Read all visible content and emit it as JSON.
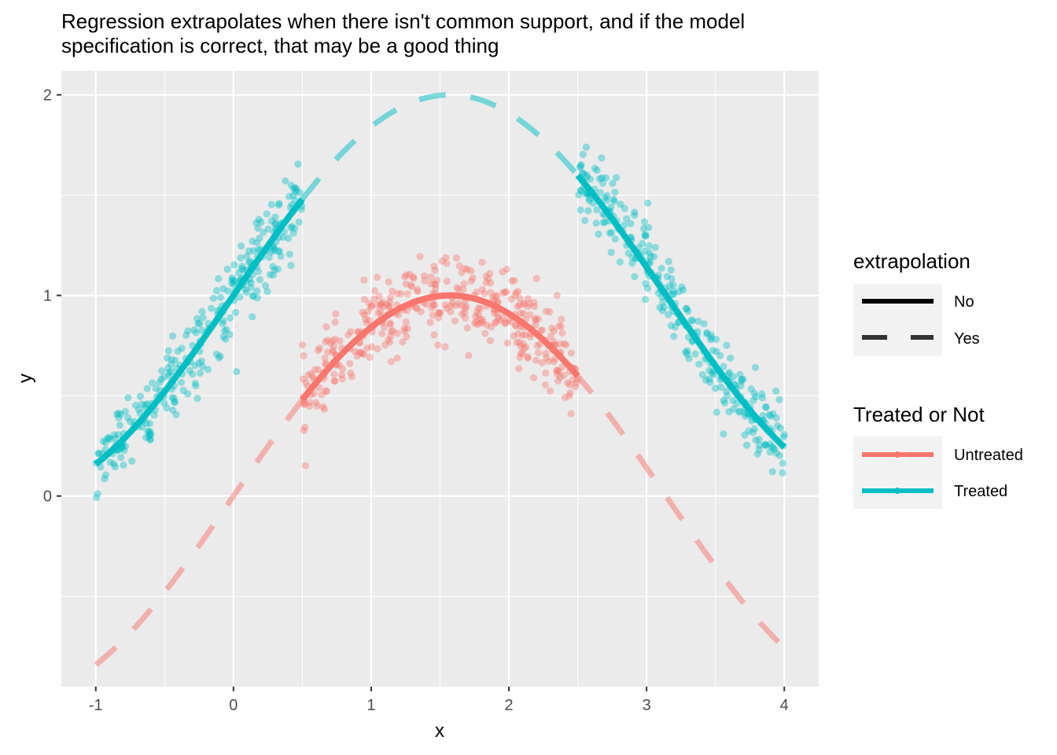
{
  "chart_data": {
    "type": "scatter",
    "title": "Regression extrapolates when there isn't common support, and if the model",
    "subtitle": "specification is correct, that may be a good thing",
    "xlabel": "x",
    "ylabel": "y",
    "xlim": [
      -1.25,
      4.25
    ],
    "ylim": [
      -0.95,
      2.12
    ],
    "xticks": [
      -1,
      0,
      1,
      2,
      3,
      4
    ],
    "yticks": [
      0,
      1,
      2
    ],
    "grid": true,
    "legend_position": "right",
    "legends": [
      {
        "title": "extrapolation",
        "entries": [
          {
            "label": "No",
            "linetype": "solid"
          },
          {
            "label": "Yes",
            "linetype": "dashed"
          }
        ]
      },
      {
        "title": "Treated or Not",
        "entries": [
          {
            "label": "Untreated",
            "color": "#F8766D"
          },
          {
            "label": "Treated",
            "color": "#00BFC4"
          }
        ]
      }
    ],
    "function": "y = sin(x) + 1 * (treated) ; untreated curve y = sin(x)",
    "series": [
      {
        "name": "Untreated",
        "color": "#F8766D",
        "x_range": [
          0.5,
          2.5
        ],
        "points": 400,
        "fit_solid_range": [
          0.5,
          2.5
        ],
        "fit_dashed_range": [
          -1,
          4
        ]
      },
      {
        "name": "Treated",
        "color": "#00BFC4",
        "x_ranges": [
          [
            -1,
            0.5
          ],
          [
            2.5,
            4
          ]
        ],
        "points": 600,
        "fit_solid_ranges": [
          [
            -1,
            0.5
          ],
          [
            2.5,
            4
          ]
        ],
        "fit_dashed_range": [
          0.5,
          2.5
        ]
      }
    ]
  }
}
